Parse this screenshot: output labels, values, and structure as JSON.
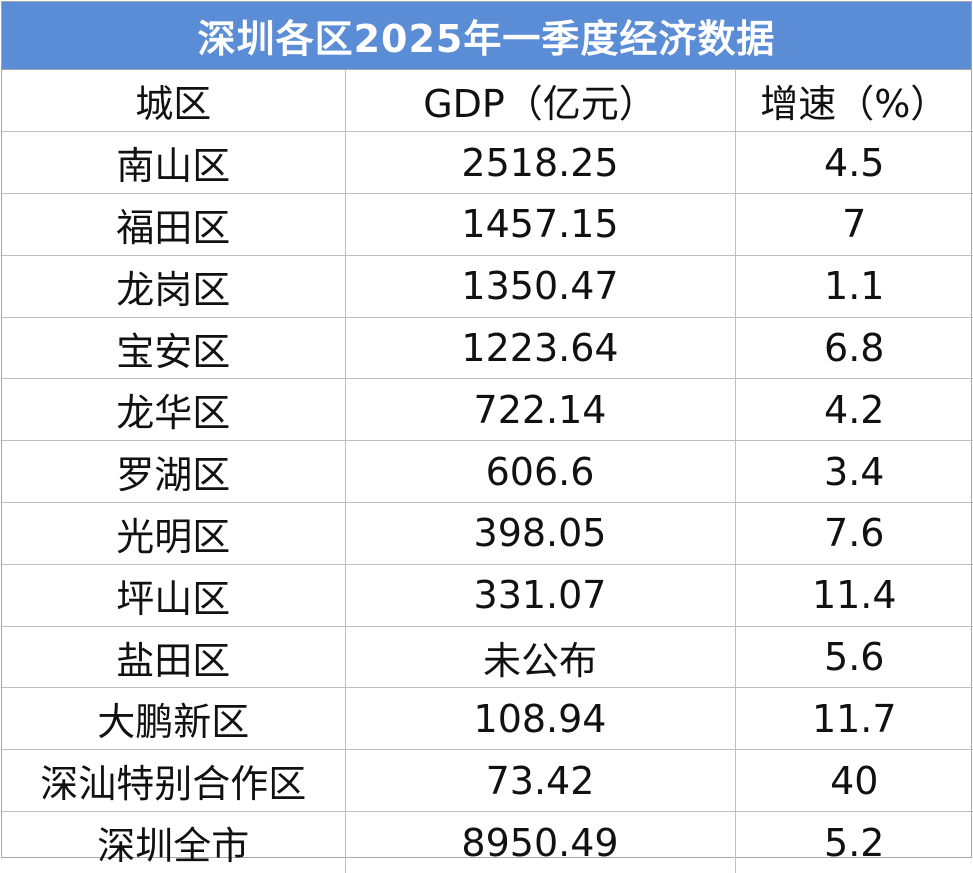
{
  "title": "深圳各区2025年一季度经济数据",
  "headers": {
    "district": "城区",
    "gdp": "GDP（亿元）",
    "growth": "增速（%）"
  },
  "rows": [
    {
      "district": "南山区",
      "gdp": "2518.25",
      "growth": "4.5"
    },
    {
      "district": "福田区",
      "gdp": "1457.15",
      "growth": "7"
    },
    {
      "district": "龙岗区",
      "gdp": "1350.47",
      "growth": "1.1"
    },
    {
      "district": "宝安区",
      "gdp": "1223.64",
      "growth": "6.8"
    },
    {
      "district": "龙华区",
      "gdp": "722.14",
      "growth": "4.2"
    },
    {
      "district": "罗湖区",
      "gdp": "606.6",
      "growth": "3.4"
    },
    {
      "district": "光明区",
      "gdp": "398.05",
      "growth": "7.6"
    },
    {
      "district": "坪山区",
      "gdp": "331.07",
      "growth": "11.4"
    },
    {
      "district": "盐田区",
      "gdp": "未公布",
      "growth": "5.6"
    },
    {
      "district": "大鹏新区",
      "gdp": "108.94",
      "growth": "11.7"
    },
    {
      "district": "深汕特别合作区",
      "gdp": "73.42",
      "growth": "40"
    },
    {
      "district": "深圳全市",
      "gdp": "8950.49",
      "growth": "5.2"
    }
  ],
  "colors": {
    "title_background": "#5b8dd6",
    "title_text": "#ffffff",
    "grid_line": "#bfbfbf"
  }
}
